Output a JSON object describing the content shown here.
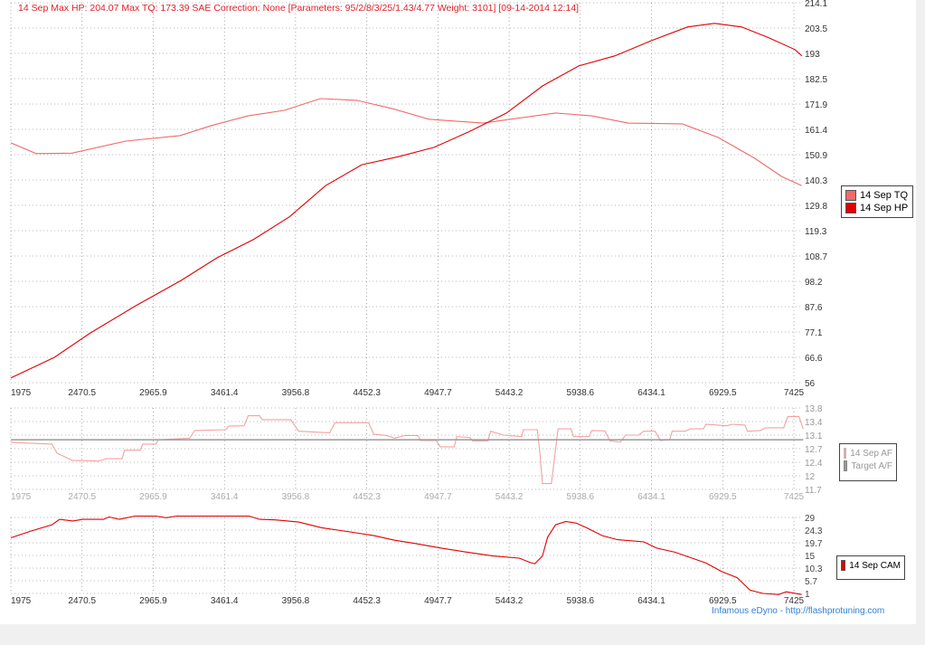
{
  "title": "14 Sep Max HP: 204.07 Max TQ: 173.39 SAE Correction: None [Parameters: 95/2/8/3/25/1.43/4.77 Weight: 3101] [09-14-2014 12:14]",
  "footer": "Infamous eDyno - http://flashprotuning.com",
  "chart_data": [
    {
      "type": "line",
      "x_ticks": [
        "1975",
        "2470.5",
        "2965.9",
        "3461.4",
        "3956.8",
        "4452.3",
        "4947.7",
        "5443.2",
        "5938.6",
        "6434.1",
        "6929.5",
        "7425"
      ],
      "y_ticks": [
        "214.1",
        "203.5",
        "193",
        "182.5",
        "171.9",
        "161.4",
        "150.9",
        "140.3",
        "129.8",
        "119.3",
        "108.7",
        "98.2",
        "87.6",
        "77.1",
        "66.6",
        "56"
      ],
      "xlim": [
        1975,
        7425
      ],
      "ylim": [
        56,
        214.1
      ],
      "grid": true,
      "legend_placement": "right",
      "series": [
        {
          "name": "14 Sep TQ",
          "color": "#f06a6a",
          "x": [
            1975,
            2151,
            2400,
            2774,
            3152,
            3374,
            3626,
            3878,
            4129,
            4381,
            4633,
            4885,
            5262,
            5766,
            6018,
            6270,
            6647,
            6899,
            7151,
            7340,
            7480
          ],
          "y": [
            155.8,
            151.3,
            151.5,
            156.5,
            158.8,
            163,
            167,
            169.3,
            174.2,
            173.5,
            170,
            165.6,
            164,
            168.2,
            167,
            164,
            163.7,
            158,
            149.4,
            141.8,
            138
          ]
        },
        {
          "name": "14 Sep HP",
          "color": "#e00000",
          "x": [
            1975,
            2277,
            2529,
            2844,
            3159,
            3411,
            3662,
            3914,
            4166,
            4418,
            4669,
            4921,
            5173,
            5425,
            5677,
            5928,
            6180,
            6432,
            6684,
            6873,
            7061,
            7250,
            7432,
            7480
          ],
          "y": [
            58,
            66.5,
            76.7,
            88,
            98.5,
            108,
            115.5,
            125,
            138,
            146.7,
            150,
            153.9,
            160.7,
            168.2,
            179.5,
            187.8,
            192,
            198.3,
            204,
            205.5,
            204,
            199.5,
            194.6,
            192
          ]
        }
      ]
    },
    {
      "type": "line",
      "x_ticks": [
        "1975",
        "2470.5",
        "2965.9",
        "3461.4",
        "3956.8",
        "4452.3",
        "4947.7",
        "5443.2",
        "5938.6",
        "6434.1",
        "6929.5",
        "7425"
      ],
      "y_ticks": [
        "13.8",
        "13.4",
        "13.1",
        "12.7",
        "12.4",
        "12",
        "11.7"
      ],
      "xlim": [
        1975,
        7425
      ],
      "ylim": [
        11.7,
        13.8
      ],
      "grid": true,
      "legend_placement": "right",
      "series": [
        {
          "name": "14 Sep AF",
          "color": "#f4a0a0",
          "x": [
            1975,
            2261,
            2297,
            2405,
            2586,
            2640,
            2749,
            2767,
            2875,
            2893,
            2984,
            3002,
            3219,
            3255,
            3472,
            3490,
            3598,
            3627,
            3707,
            3725,
            3923,
            3978,
            4194,
            4230,
            4465,
            4501,
            4592,
            4646,
            4718,
            4808,
            4826,
            4935,
            4964,
            5061,
            5079,
            5170,
            5188,
            5296,
            5314,
            5404,
            5531,
            5542,
            5639,
            5657,
            5675,
            5737,
            5784,
            5874,
            5892,
            6000,
            6018,
            6109,
            6145,
            6217,
            6253,
            6344,
            6380,
            6459,
            6495,
            6560,
            6578,
            6669,
            6705,
            6795,
            6813,
            6958,
            6994,
            7084,
            7102,
            7192,
            7228,
            7354,
            7383,
            7460,
            7490
          ],
          "y": [
            12.91,
            12.87,
            12.63,
            12.45,
            12.43,
            12.49,
            12.49,
            12.71,
            12.71,
            12.87,
            12.87,
            12.98,
            13.02,
            13.22,
            13.24,
            13.33,
            13.34,
            13.6,
            13.6,
            13.5,
            13.5,
            13.2,
            13.16,
            13.42,
            13.42,
            13.12,
            13.09,
            13.02,
            13.09,
            13.09,
            12.96,
            12.96,
            12.8,
            12.8,
            13.06,
            13.04,
            12.95,
            12.95,
            13.2,
            13.1,
            13.06,
            13.24,
            13.24,
            12.63,
            11.85,
            11.85,
            13.26,
            13.26,
            13.06,
            13.06,
            13.22,
            13.21,
            12.95,
            12.92,
            13.1,
            13.1,
            13.2,
            13.2,
            12.96,
            12.98,
            13.2,
            13.2,
            13.26,
            13.26,
            13.38,
            13.34,
            13.38,
            13.36,
            13.2,
            13.22,
            13.29,
            13.29,
            13.58,
            13.58,
            13.26
          ]
        },
        {
          "name": "Target A/F",
          "color": "#999999",
          "x": [
            1975,
            7490
          ],
          "y": [
            12.98,
            12.98
          ]
        }
      ]
    },
    {
      "type": "line",
      "x_ticks": [
        "1975",
        "2470.5",
        "2965.9",
        "3461.4",
        "3956.8",
        "4452.3",
        "4947.7",
        "5443.2",
        "5938.6",
        "6434.1",
        "6929.5",
        "7425"
      ],
      "y_ticks": [
        "29",
        "24.3",
        "19.7",
        "15",
        "10.3",
        "5.7",
        "1"
      ],
      "xlim": [
        1975,
        7425
      ],
      "ylim": [
        1,
        29
      ],
      "grid": true,
      "legend_placement": "right",
      "series": [
        {
          "name": "14 Sep CAM",
          "color": "#e00000",
          "x": [
            1975,
            2116,
            2261,
            2315,
            2405,
            2477,
            2622,
            2658,
            2731,
            2839,
            2984,
            3056,
            3128,
            3634,
            3707,
            3815,
            3978,
            4140,
            4357,
            4501,
            4646,
            4790,
            4971,
            5151,
            5332,
            5513,
            5585,
            5621,
            5675,
            5711,
            5766,
            5838,
            5910,
            5982,
            6091,
            6199,
            6380,
            6470,
            6597,
            6705,
            6813,
            6922,
            7030,
            7120,
            7210,
            7318,
            7372,
            7480
          ],
          "y": [
            21.5,
            24,
            26.3,
            28.3,
            27.7,
            28.3,
            28.3,
            29.2,
            28.3,
            29.5,
            29.5,
            28.9,
            29.5,
            29.5,
            28.3,
            28.1,
            27.3,
            25.2,
            23.5,
            22.3,
            20.6,
            19.4,
            17.7,
            16.2,
            14.8,
            14,
            12.5,
            11.9,
            14.8,
            21.7,
            26.3,
            27.5,
            26.9,
            25.2,
            22.3,
            20.8,
            20,
            17.7,
            16.2,
            14.2,
            12.2,
            9.1,
            6.8,
            2.2,
            1,
            0.6,
            1.6,
            0.6
          ]
        }
      ]
    }
  ]
}
